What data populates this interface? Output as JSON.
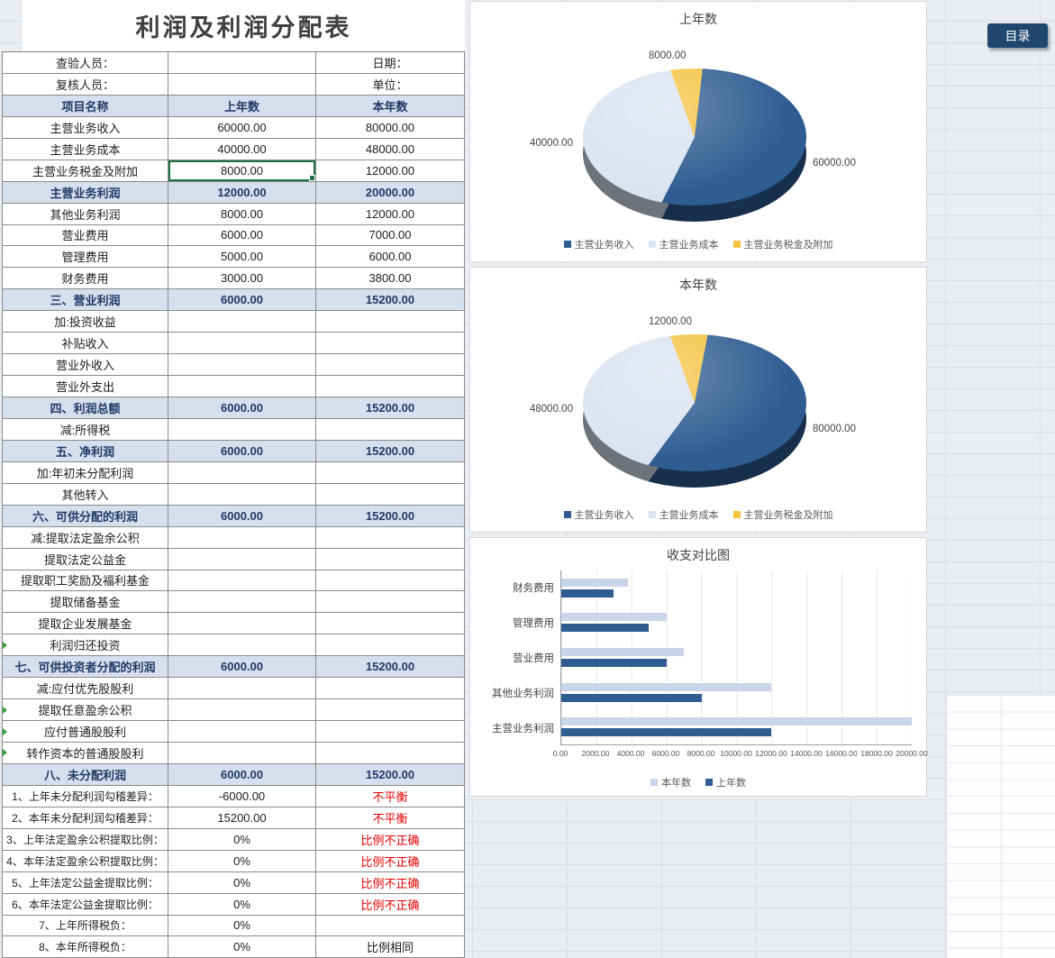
{
  "page": {
    "title": "利润及利润分配表",
    "toc_button": "目录"
  },
  "table": {
    "meta": {
      "inspector_label": "查验人员：",
      "date_label": "日期：",
      "reviewer_label": "复核人员：",
      "unit_label": "单位："
    },
    "rows": [
      {
        "type": "header",
        "name": "项目名称",
        "prev": "上年数",
        "curr": "本年数"
      },
      {
        "name": "主营业务收入",
        "prev": "60000.00",
        "curr": "80000.00"
      },
      {
        "name": "主营业务成本",
        "prev": "40000.00",
        "curr": "48000.00"
      },
      {
        "name": "主营业务税金及附加",
        "prev": "8000.00",
        "curr": "12000.00",
        "selected": "prev"
      },
      {
        "type": "section",
        "name": "主营业务利润",
        "prev": "12000.00",
        "curr": "20000.00"
      },
      {
        "name": "其他业务利润",
        "prev": "8000.00",
        "curr": "12000.00"
      },
      {
        "name": "营业费用",
        "prev": "6000.00",
        "curr": "7000.00"
      },
      {
        "name": "管理费用",
        "prev": "5000.00",
        "curr": "6000.00"
      },
      {
        "name": "财务费用",
        "prev": "3000.00",
        "curr": "3800.00"
      },
      {
        "type": "section",
        "name": "三、营业利润",
        "prev": "6000.00",
        "curr": "15200.00"
      },
      {
        "name": "加:投资收益",
        "prev": "",
        "curr": ""
      },
      {
        "name": "补贴收入",
        "prev": "",
        "curr": ""
      },
      {
        "name": "营业外收入",
        "prev": "",
        "curr": ""
      },
      {
        "name": "营业外支出",
        "prev": "",
        "curr": ""
      },
      {
        "type": "section",
        "name": "四、利润总额",
        "prev": "6000.00",
        "curr": "15200.00"
      },
      {
        "name": "减:所得税",
        "prev": "",
        "curr": ""
      },
      {
        "type": "section",
        "name": "五、净利润",
        "prev": "6000.00",
        "curr": "15200.00"
      },
      {
        "name": "加:年初未分配利润",
        "prev": "",
        "curr": ""
      },
      {
        "name": "其他转入",
        "prev": "",
        "curr": ""
      },
      {
        "type": "section",
        "name": "六、可供分配的利润",
        "prev": "6000.00",
        "curr": "15200.00"
      },
      {
        "name": "减:提取法定盈余公积",
        "prev": "",
        "curr": ""
      },
      {
        "name": "提取法定公益金",
        "prev": "",
        "curr": ""
      },
      {
        "name": "提取职工奖励及福利基金",
        "prev": "",
        "curr": ""
      },
      {
        "name": "提取储备基金",
        "prev": "",
        "curr": ""
      },
      {
        "name": "提取企业发展基金",
        "prev": "",
        "curr": ""
      },
      {
        "name": "利润归还投资",
        "prev": "",
        "curr": "",
        "marker": true
      },
      {
        "type": "section",
        "name": "七、可供投资者分配的利润",
        "prev": "6000.00",
        "curr": "15200.00"
      },
      {
        "name": "减:应付优先股股利",
        "prev": "",
        "curr": ""
      },
      {
        "name": "提取任意盈余公积",
        "prev": "",
        "curr": "",
        "marker": true
      },
      {
        "name": "应付普通股股利",
        "prev": "",
        "curr": "",
        "marker": true
      },
      {
        "name": "转作资本的普通股股利",
        "prev": "",
        "curr": "",
        "marker": true
      },
      {
        "type": "section",
        "name": "八、未分配利润",
        "prev": "6000.00",
        "curr": "15200.00"
      },
      {
        "type": "check",
        "name": "1、上年未分配利润勾稽差异：",
        "prev": "-6000.00",
        "curr": "不平衡",
        "red": true
      },
      {
        "type": "check",
        "name": "2、本年未分配利润勾稽差异：",
        "prev": "15200.00",
        "curr": "不平衡",
        "red": true
      },
      {
        "type": "check",
        "name": "3、上年法定盈余公积提取比例：",
        "prev": "0%",
        "curr": "比例不正确",
        "red": true
      },
      {
        "type": "check",
        "name": "4、本年法定盈余公积提取比例：",
        "prev": "0%",
        "curr": "比例不正确",
        "red": true
      },
      {
        "type": "check",
        "name": "5、上年法定公益金提取比例：",
        "prev": "0%",
        "curr": "比例不正确",
        "red": true
      },
      {
        "type": "check",
        "name": "6、本年法定公益金提取比例：",
        "prev": "0%",
        "curr": "比例不正确",
        "red": true
      },
      {
        "type": "check",
        "name": "7、上年所得税负：",
        "prev": "0%",
        "curr": ""
      },
      {
        "type": "check",
        "name": "8、本年所得税负：",
        "prev": "0%",
        "curr": "比例相同"
      }
    ]
  },
  "chart_data": [
    {
      "type": "pie",
      "title": "上年数",
      "labels": [
        "主营业务收入",
        "主营业务成本",
        "主营业务税金及附加"
      ],
      "values": [
        60000,
        40000,
        8000
      ],
      "value_labels": [
        "60000.00",
        "40000.00",
        "8000.00"
      ],
      "colors": [
        "#2f5d92",
        "#dbe3f1",
        "#f6c242"
      ],
      "legend_position": "bottom"
    },
    {
      "type": "pie",
      "title": "本年数",
      "labels": [
        "主营业务收入",
        "主营业务成本",
        "主营业务税金及附加"
      ],
      "values": [
        80000,
        48000,
        12000
      ],
      "value_labels": [
        "80000.00",
        "48000.00",
        "12000.00"
      ],
      "colors": [
        "#2f5d92",
        "#dbe3f1",
        "#f6c242"
      ],
      "legend_position": "bottom"
    },
    {
      "type": "bar",
      "title": "收支对比图",
      "orientation": "horizontal",
      "categories": [
        "财务费用",
        "管理费用",
        "营业费用",
        "其他业务利润",
        "主营业务利润"
      ],
      "series": [
        {
          "name": "本年数",
          "color": "#c9d5e8",
          "values": [
            3800,
            6000,
            7000,
            12000,
            20000
          ]
        },
        {
          "name": "上年数",
          "color": "#2f5d92",
          "values": [
            3000,
            5000,
            6000,
            8000,
            12000
          ]
        }
      ],
      "xlim": [
        0,
        20000
      ],
      "x_ticks": [
        "0.00",
        "2000.00",
        "4000.00",
        "6000.00",
        "8000.00",
        "10000.00",
        "12000.00",
        "14000.00",
        "16000.00",
        "18000.00",
        "20000.00"
      ],
      "grid": true,
      "legend_position": "bottom"
    }
  ]
}
